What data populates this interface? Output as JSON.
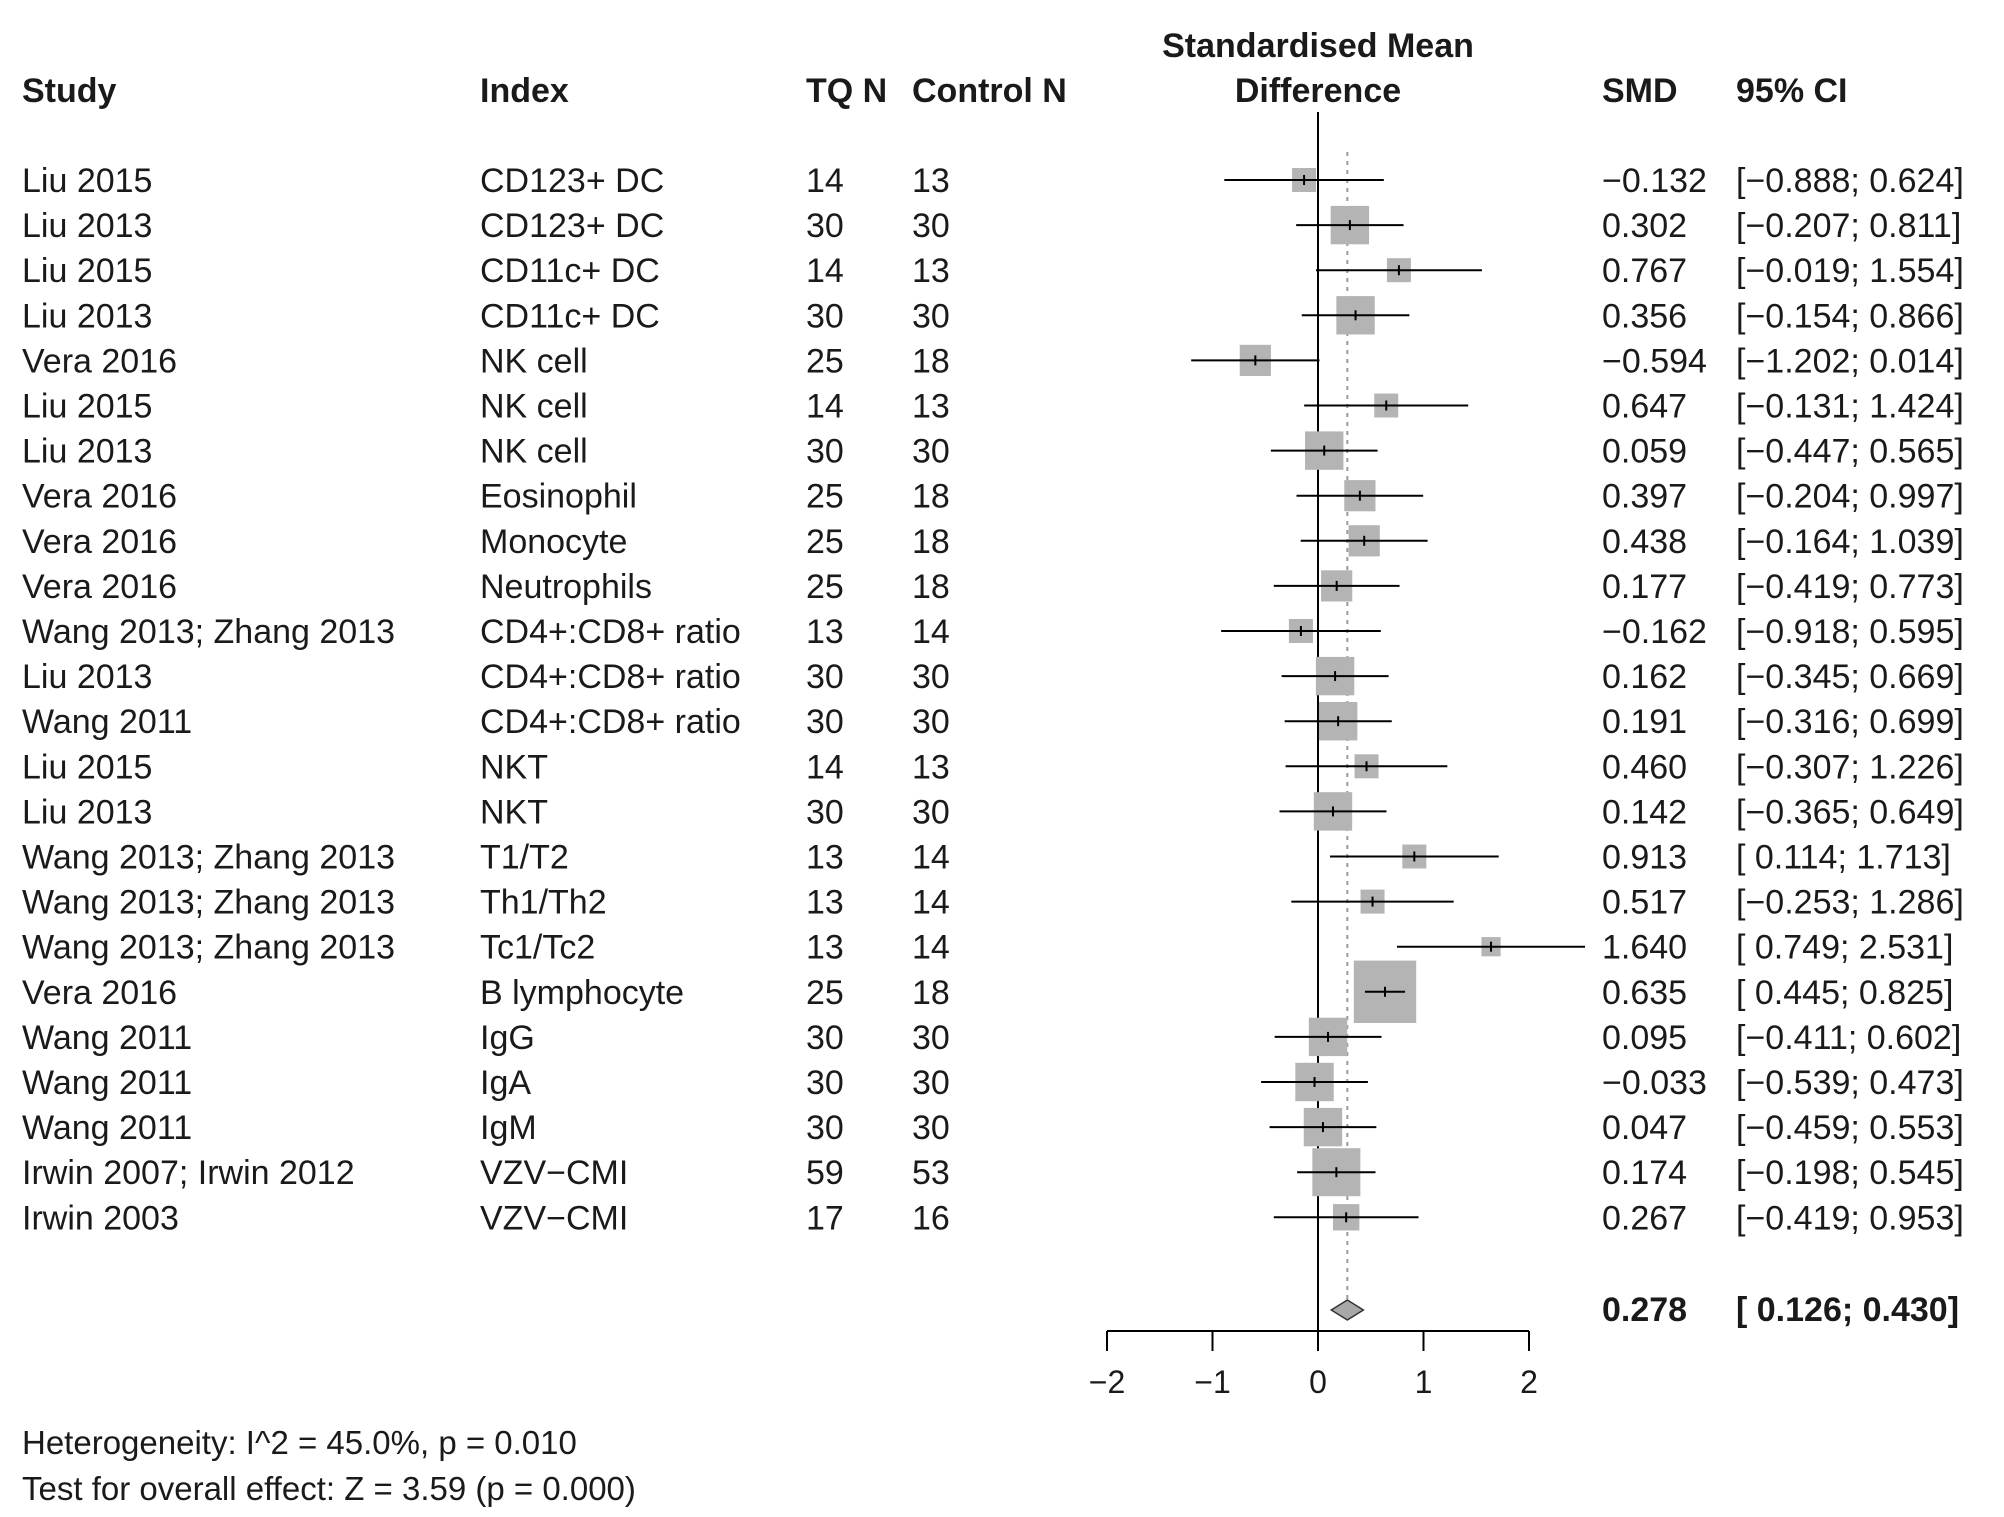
{
  "chart_data": {
    "type": "forest",
    "headers": {
      "study": "Study",
      "index": "Index",
      "tq_n": "TQ N",
      "control_n": "Control N",
      "plot_title_line1": "Standardised Mean",
      "plot_title_line2": "Difference",
      "smd": "SMD",
      "ci": "95% CI"
    },
    "xlim": [
      -2,
      2
    ],
    "x_ticks": [
      -2,
      -1,
      0,
      1,
      2
    ],
    "x_tick_labels": [
      "−2",
      "−1",
      "0",
      "1",
      "2"
    ],
    "rows": [
      {
        "study": "Liu 2015",
        "index": "CD123+ DC",
        "tq_n": "14",
        "control_n": "13",
        "smd": -0.132,
        "lower": -0.888,
        "upper": 0.624,
        "weight": 1.0,
        "smd_text": "−0.132",
        "ci_text": "[−0.888; 0.624]"
      },
      {
        "study": "Liu 2013",
        "index": "CD123+ DC",
        "tq_n": "30",
        "control_n": "30",
        "smd": 0.302,
        "lower": -0.207,
        "upper": 0.811,
        "weight": 1.6,
        "smd_text": "0.302",
        "ci_text": "[−0.207; 0.811]"
      },
      {
        "study": "Liu 2015",
        "index": "CD11c+ DC",
        "tq_n": "14",
        "control_n": "13",
        "smd": 0.767,
        "lower": -0.019,
        "upper": 1.554,
        "weight": 1.0,
        "smd_text": "0.767",
        "ci_text": "[−0.019; 1.554]"
      },
      {
        "study": "Liu 2013",
        "index": "CD11c+ DC",
        "tq_n": "30",
        "control_n": "30",
        "smd": 0.356,
        "lower": -0.154,
        "upper": 0.866,
        "weight": 1.6,
        "smd_text": "0.356",
        "ci_text": "[−0.154; 0.866]"
      },
      {
        "study": "Vera 2016",
        "index": "NK cell",
        "tq_n": "25",
        "control_n": "18",
        "smd": -0.594,
        "lower": -1.202,
        "upper": 0.014,
        "weight": 1.3,
        "smd_text": "−0.594",
        "ci_text": "[−1.202; 0.014]"
      },
      {
        "study": "Liu 2015",
        "index": "NK cell",
        "tq_n": "14",
        "control_n": "13",
        "smd": 0.647,
        "lower": -0.131,
        "upper": 1.424,
        "weight": 1.0,
        "smd_text": "0.647",
        "ci_text": "[−0.131; 1.424]"
      },
      {
        "study": "Liu 2013",
        "index": "NK cell",
        "tq_n": "30",
        "control_n": "30",
        "smd": 0.059,
        "lower": -0.447,
        "upper": 0.565,
        "weight": 1.6,
        "smd_text": "0.059",
        "ci_text": "[−0.447; 0.565]"
      },
      {
        "study": "Vera 2016",
        "index": "Eosinophil",
        "tq_n": "25",
        "control_n": "18",
        "smd": 0.397,
        "lower": -0.204,
        "upper": 0.997,
        "weight": 1.3,
        "smd_text": "0.397",
        "ci_text": "[−0.204; 0.997]"
      },
      {
        "study": "Vera 2016",
        "index": "Monocyte",
        "tq_n": "25",
        "control_n": "18",
        "smd": 0.438,
        "lower": -0.164,
        "upper": 1.039,
        "weight": 1.3,
        "smd_text": "0.438",
        "ci_text": "[−0.164; 1.039]"
      },
      {
        "study": "Vera 2016",
        "index": "Neutrophils",
        "tq_n": "25",
        "control_n": "18",
        "smd": 0.177,
        "lower": -0.419,
        "upper": 0.773,
        "weight": 1.3,
        "smd_text": "0.177",
        "ci_text": "[−0.419; 0.773]"
      },
      {
        "study": "Wang 2013; Zhang 2013",
        "index": "CD4+:CD8+ ratio",
        "tq_n": "13",
        "control_n": "14",
        "smd": -0.162,
        "lower": -0.918,
        "upper": 0.595,
        "weight": 1.0,
        "smd_text": "−0.162",
        "ci_text": "[−0.918; 0.595]"
      },
      {
        "study": "Liu 2013",
        "index": "CD4+:CD8+ ratio",
        "tq_n": "30",
        "control_n": "30",
        "smd": 0.162,
        "lower": -0.345,
        "upper": 0.669,
        "weight": 1.6,
        "smd_text": "0.162",
        "ci_text": "[−0.345; 0.669]"
      },
      {
        "study": "Wang 2011",
        "index": "CD4+:CD8+ ratio",
        "tq_n": "30",
        "control_n": "30",
        "smd": 0.191,
        "lower": -0.316,
        "upper": 0.699,
        "weight": 1.6,
        "smd_text": "0.191",
        "ci_text": "[−0.316; 0.699]"
      },
      {
        "study": "Liu 2015",
        "index": "NKT",
        "tq_n": "14",
        "control_n": "13",
        "smd": 0.46,
        "lower": -0.307,
        "upper": 1.226,
        "weight": 1.0,
        "smd_text": "0.460",
        "ci_text": "[−0.307; 1.226]"
      },
      {
        "study": "Liu 2013",
        "index": "NKT",
        "tq_n": "30",
        "control_n": "30",
        "smd": 0.142,
        "lower": -0.365,
        "upper": 0.649,
        "weight": 1.6,
        "smd_text": "0.142",
        "ci_text": "[−0.365; 0.649]"
      },
      {
        "study": "Wang 2013; Zhang 2013",
        "index": "T1/T2",
        "tq_n": "13",
        "control_n": "14",
        "smd": 0.913,
        "lower": 0.114,
        "upper": 1.713,
        "weight": 1.0,
        "smd_text": "0.913",
        "ci_text": "[ 0.114; 1.713]"
      },
      {
        "study": "Wang 2013; Zhang 2013",
        "index": "Th1/Th2",
        "tq_n": "13",
        "control_n": "14",
        "smd": 0.517,
        "lower": -0.253,
        "upper": 1.286,
        "weight": 1.0,
        "smd_text": "0.517",
        "ci_text": "[−0.253; 1.286]"
      },
      {
        "study": "Wang 2013; Zhang 2013",
        "index": "Tc1/Tc2",
        "tq_n": "13",
        "control_n": "14",
        "smd": 1.64,
        "lower": 0.749,
        "upper": 2.531,
        "weight": 0.8,
        "smd_text": "1.640",
        "ci_text": "[ 0.749; 2.531]"
      },
      {
        "study": "Vera 2016",
        "index": "B lymphocyte",
        "tq_n": "25",
        "control_n": "18",
        "smd": 0.635,
        "lower": 0.445,
        "upper": 0.825,
        "weight": 2.6,
        "smd_text": "0.635",
        "ci_text": "[ 0.445; 0.825]"
      },
      {
        "study": "Wang 2011",
        "index": "IgG",
        "tq_n": "30",
        "control_n": "30",
        "smd": 0.095,
        "lower": -0.411,
        "upper": 0.602,
        "weight": 1.6,
        "smd_text": "0.095",
        "ci_text": "[−0.411; 0.602]"
      },
      {
        "study": "Wang 2011",
        "index": "IgA",
        "tq_n": "30",
        "control_n": "30",
        "smd": -0.033,
        "lower": -0.539,
        "upper": 0.473,
        "weight": 1.6,
        "smd_text": "−0.033",
        "ci_text": "[−0.539; 0.473]"
      },
      {
        "study": "Wang 2011",
        "index": "IgM",
        "tq_n": "30",
        "control_n": "30",
        "smd": 0.047,
        "lower": -0.459,
        "upper": 0.553,
        "weight": 1.6,
        "smd_text": "0.047",
        "ci_text": "[−0.459; 0.553]"
      },
      {
        "study": "Irwin 2007; Irwin 2012",
        "index": "VZV−CMI",
        "tq_n": "59",
        "control_n": "53",
        "smd": 0.174,
        "lower": -0.198,
        "upper": 0.545,
        "weight": 2.0,
        "smd_text": "0.174",
        "ci_text": "[−0.198; 0.545]"
      },
      {
        "study": "Irwin 2003",
        "index": "VZV−CMI",
        "tq_n": "17",
        "control_n": "16",
        "smd": 0.267,
        "lower": -0.419,
        "upper": 0.953,
        "weight": 1.1,
        "smd_text": "0.267",
        "ci_text": "[−0.419; 0.953]"
      }
    ],
    "summary": {
      "smd": 0.278,
      "lower": 0.126,
      "upper": 0.43,
      "smd_text": "0.278",
      "ci_text": "[ 0.126; 0.430]"
    },
    "footer": {
      "heterogeneity": "Heterogeneity: I^2 = 45.0%, p = 0.010",
      "overall_effect": "Test for overall effect: Z = 3.59 (p = 0.000)"
    },
    "colors": {
      "box": "#b4b4b4",
      "diamond": "#a8a8a8",
      "line": "#000000",
      "reference": "#9a9a9a"
    }
  }
}
